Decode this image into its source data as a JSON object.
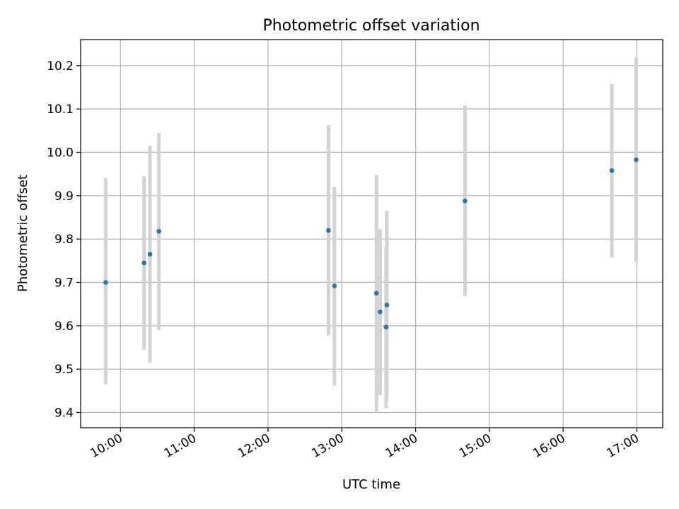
{
  "chart_data": {
    "type": "scatter",
    "title": "Photometric offset variation",
    "xlabel": "UTC time",
    "ylabel": "Photometric offset",
    "x_unit": "hours UTC",
    "xlim": [
      9.46,
      17.35
    ],
    "ylim": [
      9.365,
      10.26
    ],
    "grid": true,
    "x_ticks": [
      {
        "value": 10,
        "label": "10:00"
      },
      {
        "value": 11,
        "label": "11:00"
      },
      {
        "value": 12,
        "label": "12:00"
      },
      {
        "value": 13,
        "label": "13:00"
      },
      {
        "value": 14,
        "label": "14:00"
      },
      {
        "value": 15,
        "label": "15:00"
      },
      {
        "value": 16,
        "label": "16:00"
      },
      {
        "value": 17,
        "label": "17:00"
      }
    ],
    "y_ticks": [
      {
        "value": 9.4,
        "label": "9.4"
      },
      {
        "value": 9.5,
        "label": "9.5"
      },
      {
        "value": 9.6,
        "label": "9.6"
      },
      {
        "value": 9.7,
        "label": "9.7"
      },
      {
        "value": 9.8,
        "label": "9.8"
      },
      {
        "value": 9.9,
        "label": "9.9"
      },
      {
        "value": 10.0,
        "label": "10.0"
      },
      {
        "value": 10.1,
        "label": "10.1"
      },
      {
        "value": 10.2,
        "label": "10.2"
      }
    ],
    "marker_color": "#1f77b4",
    "errorbar_color": "#d3d3d3",
    "points": [
      {
        "x": 9.8,
        "y": 9.7,
        "ylow": 9.465,
        "yhigh": 9.94
      },
      {
        "x": 10.32,
        "y": 9.745,
        "ylow": 9.545,
        "yhigh": 9.945
      },
      {
        "x": 10.4,
        "y": 9.765,
        "ylow": 9.515,
        "yhigh": 10.015
      },
      {
        "x": 10.52,
        "y": 9.818,
        "ylow": 9.59,
        "yhigh": 10.045
      },
      {
        "x": 12.82,
        "y": 9.82,
        "ylow": 9.578,
        "yhigh": 10.063
      },
      {
        "x": 12.9,
        "y": 9.692,
        "ylow": 9.462,
        "yhigh": 9.92
      },
      {
        "x": 13.47,
        "y": 9.675,
        "ylow": 9.4,
        "yhigh": 9.948
      },
      {
        "x": 13.52,
        "y": 9.632,
        "ylow": 9.44,
        "yhigh": 9.823
      },
      {
        "x": 13.6,
        "y": 9.597,
        "ylow": 9.41,
        "yhigh": 9.782
      },
      {
        "x": 13.61,
        "y": 9.648,
        "ylow": 9.432,
        "yhigh": 9.865
      },
      {
        "x": 14.67,
        "y": 9.888,
        "ylow": 9.668,
        "yhigh": 10.108
      },
      {
        "x": 16.66,
        "y": 9.958,
        "ylow": 9.758,
        "yhigh": 10.158
      },
      {
        "x": 16.99,
        "y": 9.983,
        "ylow": 9.748,
        "yhigh": 10.218
      }
    ]
  }
}
